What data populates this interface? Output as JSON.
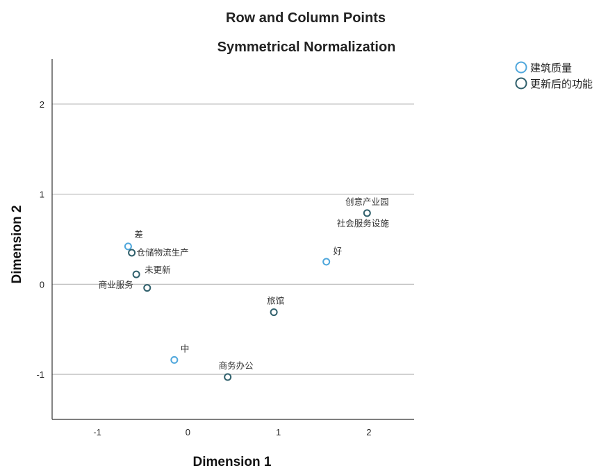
{
  "chart_data": {
    "type": "scatter",
    "title": "Row and Column Points",
    "subtitle": "Symmetrical Normalization",
    "xlabel": "Dimension 1",
    "ylabel": "Dimension 2",
    "xlim": [
      -1.5,
      2.5
    ],
    "ylim": [
      -1.5,
      2.5
    ],
    "xticks": [
      -1,
      0,
      1,
      2
    ],
    "yticks": [
      -1,
      0,
      1,
      2
    ],
    "grid": "horizontal",
    "legend_position": "top-right",
    "series": [
      {
        "name": "建筑质量",
        "color": "#4FA7DC",
        "points": [
          {
            "label": "差",
            "x": -0.66,
            "y": 0.42
          },
          {
            "label": "好",
            "x": 1.53,
            "y": 0.25
          },
          {
            "label": "中",
            "x": -0.15,
            "y": -0.84
          }
        ]
      },
      {
        "name": "更新后的功能",
        "color": "#2F5F6B",
        "points": [
          {
            "label": "创意产业园",
            "x": 1.98,
            "y": 0.79
          },
          {
            "label": "社会服务设施",
            "x": 1.98,
            "y": 0.79
          },
          {
            "label": "仓储物流生产",
            "x": -0.62,
            "y": 0.35
          },
          {
            "label": "未更新",
            "x": -0.57,
            "y": 0.11
          },
          {
            "label": "商业服务",
            "x": -0.45,
            "y": -0.04
          },
          {
            "label": "旅馆",
            "x": 0.95,
            "y": -0.31
          },
          {
            "label": "商务办公",
            "x": 0.44,
            "y": -1.03
          }
        ]
      }
    ]
  }
}
